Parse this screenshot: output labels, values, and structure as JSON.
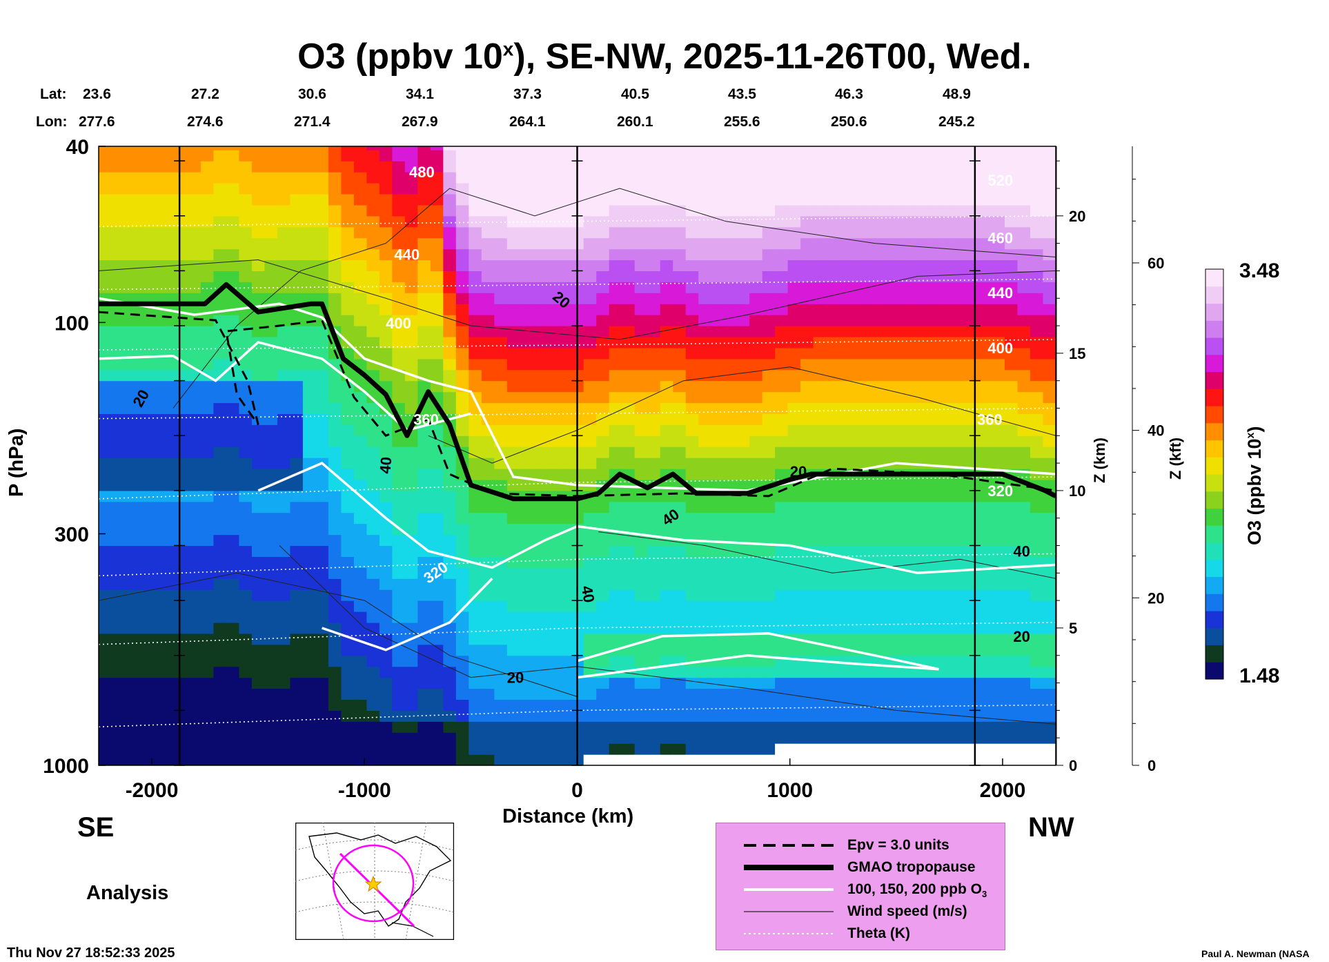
{
  "title": {
    "main": "O3 (ppbv 10",
    "sup": "x",
    "rest": "), SE-NW, 2025-11-26T00, Wed."
  },
  "lat": {
    "label": "Lat:",
    "values": [
      "23.6",
      "27.2",
      "30.6",
      "34.1",
      "37.3",
      "40.5",
      "43.5",
      "46.3",
      "48.9"
    ]
  },
  "lon": {
    "label": "Lon:",
    "values": [
      "277.6",
      "274.6",
      "271.4",
      "267.9",
      "264.1",
      "260.1",
      "255.6",
      "250.6",
      "245.2"
    ]
  },
  "chart_data": {
    "type": "heatmap",
    "title": "O3 (ppbv 10^x), SE-NW, 2025-11-26T00, Wed.",
    "xlabel": "Distance (km)",
    "ylabel": "P (hPa)",
    "z_km_label": "Z (km)",
    "z_kft_label": "Z (kft)",
    "x_ticks": [
      -2000,
      -1000,
      0,
      1000,
      2000
    ],
    "x_tick_labels": [
      "-2000",
      "-1000",
      "0",
      "1000",
      "2000"
    ],
    "xlim": [
      -2250,
      2250
    ],
    "p_ticks": [
      40,
      100,
      300,
      1000
    ],
    "p_tick_labels": [
      "40",
      "100",
      "300",
      "1000"
    ],
    "ylim_hpa": [
      1000,
      40
    ],
    "z_km_ticks": [
      0,
      5,
      10,
      15,
      20
    ],
    "z_kft_ticks": [
      0,
      20,
      40,
      60
    ],
    "colorbar": {
      "label": "O3 (ppbv 10",
      "label_sup": "x",
      "label_end": ")",
      "min": "1.48",
      "max": "3.48",
      "colors": [
        "#0a0a6e",
        "#0f3a20",
        "#0a4f9e",
        "#1a33d6",
        "#1477ee",
        "#12aaf2",
        "#15d8e8",
        "#20e0b8",
        "#2ee28a",
        "#40d23c",
        "#8cd21c",
        "#c8e010",
        "#f0e000",
        "#ffc400",
        "#ff8f00",
        "#ff4a00",
        "#ff1414",
        "#e0006a",
        "#d81ad8",
        "#bb50f2",
        "#cf7ef0",
        "#e0a6f0",
        "#f0cdf4",
        "#fbe6fb"
      ]
    },
    "tropopause_km": [
      [
        -2250,
        16.8
      ],
      [
        -1750,
        16.8
      ],
      [
        -1650,
        17.5
      ],
      [
        -1500,
        16.5
      ],
      [
        -1250,
        16.8
      ],
      [
        -1200,
        16.8
      ],
      [
        -1100,
        14.8
      ],
      [
        -1000,
        14.2
      ],
      [
        -900,
        13.5
      ],
      [
        -800,
        12.0
      ],
      [
        -700,
        13.6
      ],
      [
        -600,
        12.4
      ],
      [
        -500,
        10.2
      ],
      [
        -300,
        9.7
      ],
      [
        0,
        9.7
      ],
      [
        100,
        9.9
      ],
      [
        200,
        10.6
      ],
      [
        330,
        10.1
      ],
      [
        450,
        10.6
      ],
      [
        560,
        9.9
      ],
      [
        800,
        9.9
      ],
      [
        1000,
        10.4
      ],
      [
        1100,
        10.6
      ],
      [
        2000,
        10.6
      ],
      [
        2200,
        10.0
      ],
      [
        2250,
        9.8
      ]
    ],
    "ozone_line_labels": [
      "20",
      "20",
      "40",
      "40",
      "40",
      "40",
      "20",
      "20",
      "20",
      "20"
    ],
    "theta_labels": [
      "480",
      "440",
      "400",
      "360",
      "320",
      "520",
      "460",
      "440",
      "400",
      "360",
      "320"
    ],
    "section_lines_km": [
      -1870,
      0,
      1870
    ]
  },
  "labels": {
    "se": "SE",
    "nw": "NW",
    "analysis": "Analysis",
    "timestamp": "Thu Nov 27 18:52:33 2025",
    "credit": "Paul A. Newman (NASA"
  },
  "legend": [
    {
      "label": "Epv = 3.0 units",
      "style": "dashed-black"
    },
    {
      "label": "GMAO tropopause",
      "style": "thick-black"
    },
    {
      "label": "100, 150, 200 ppb O",
      "sub": "3",
      "style": "white"
    },
    {
      "label": "Wind speed (m/s)",
      "style": "thin-black"
    },
    {
      "label": "Theta (K)",
      "style": "dotted-white"
    }
  ]
}
